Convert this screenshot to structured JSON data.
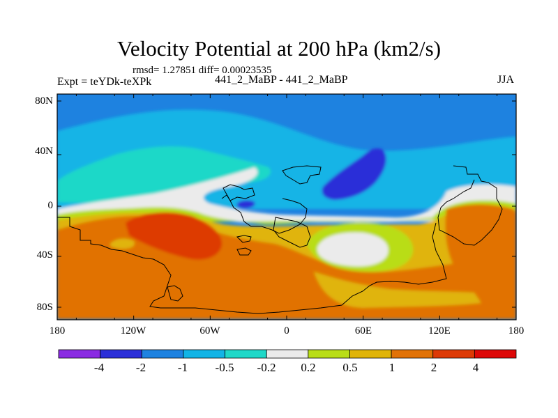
{
  "title": "Velocity Potential at 200 hPa (km2/s)",
  "stats": "rmsd= 1.27851 diff= 0.00023535",
  "left_label": "Expt = teYDk-teXPk",
  "center_label": "441_2_MaBP - 441_2_MaBP",
  "right_label": "JJA",
  "y_ticks": [
    "80N",
    "40N",
    "0",
    "40S",
    "80S"
  ],
  "x_ticks": [
    "180",
    "120W",
    "60W",
    "0",
    "60E",
    "120E",
    "180"
  ],
  "colorbar": {
    "colors": [
      "#8a2be2",
      "#2b2fd8",
      "#1e82e0",
      "#12b4e6",
      "#1fd8c8",
      "#ebebeb",
      "#b9dd17",
      "#e0b408",
      "#e17206",
      "#dd3a06",
      "#dd0808"
    ],
    "labels": [
      "-4",
      "-2",
      "-1",
      "-0.5",
      "-0.2",
      "0.2",
      "0.5",
      "1",
      "2",
      "4"
    ]
  },
  "palette": {
    "blue_mid": "#1e82e0",
    "blue_light": "#12b4e6",
    "blue_dark": "#2b2fd8",
    "cyan": "#1fd8c8",
    "white": "#ebebeb",
    "yellow_green": "#b9dd17",
    "gold": "#e0b408",
    "orange": "#e17206",
    "red_orange": "#dd3a06"
  }
}
